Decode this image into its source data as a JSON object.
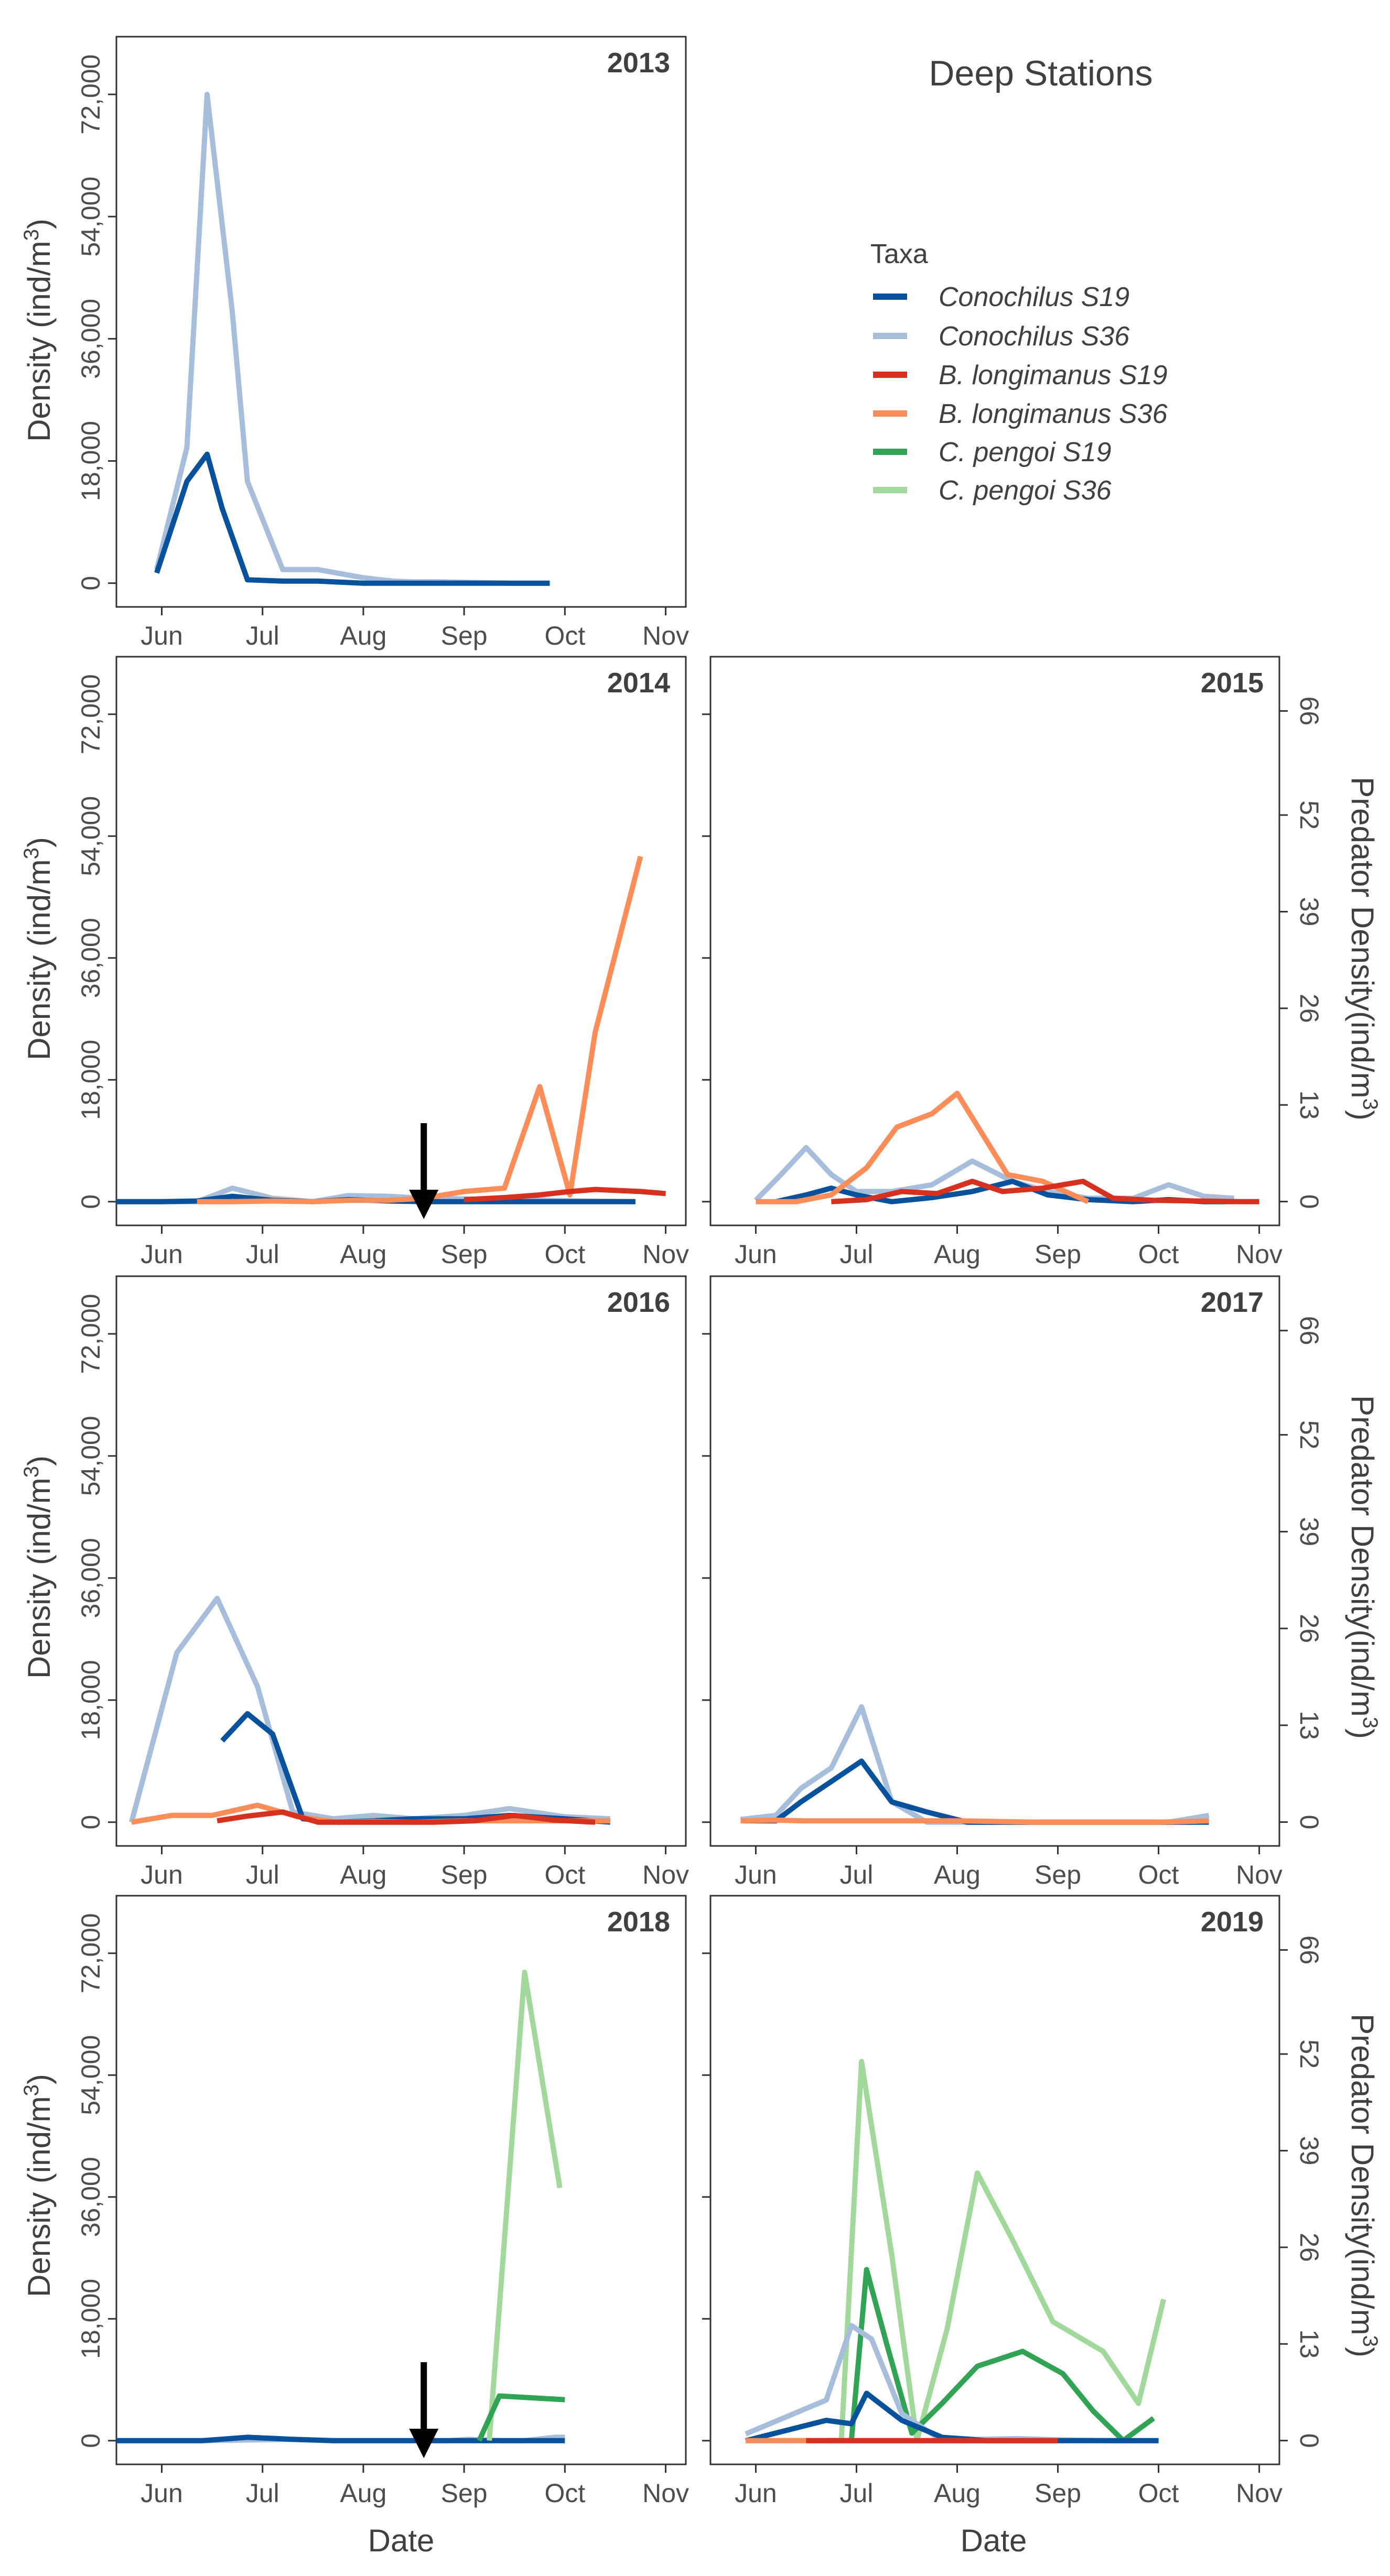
{
  "figure_title": "Deep Stations",
  "x_axis_title": "Date",
  "y_axis_title_left": "Density (ind/m3)",
  "y_axis_title_right": "Predator Density(ind/m3)",
  "legend": {
    "title": "Taxa",
    "entries": [
      {
        "key": "con19",
        "label": "Conochilus S19",
        "color": "#08519c"
      },
      {
        "key": "con36",
        "label": "Conochilus S36",
        "color": "#a6bddb"
      },
      {
        "key": "bl19",
        "label": "B. longimanus S19",
        "color": "#d7301f"
      },
      {
        "key": "bl36",
        "label": "B. longimanus S36",
        "color": "#fc8d59"
      },
      {
        "key": "cp19",
        "label": "C. pengoi S19",
        "color": "#31a354"
      },
      {
        "key": "cp36",
        "label": "C. pengoi S36",
        "color": "#a1d99b"
      }
    ]
  },
  "annotations": {
    "arrow_icon": "down-arrow-icon"
  },
  "chart_data": {
    "type": "line",
    "x_unit": "month (1 = Jun 1)",
    "xlim": [
      0.55,
      6.2
    ],
    "x_ticks": [
      1,
      2,
      3,
      4,
      5,
      6
    ],
    "x_tick_labels": [
      "Jun",
      "Jul",
      "Aug",
      "Sep",
      "Oct",
      "Nov"
    ],
    "ylim_left": [
      -3500,
      80500
    ],
    "y_ticks_left": [
      0,
      18000,
      36000,
      54000,
      72000
    ],
    "y_tick_labels_left": [
      "0",
      "18,000",
      "36,000",
      "54,000",
      "72,000"
    ],
    "ylim_right": [
      -3.2,
      73.3
    ],
    "y_ticks_right": [
      0,
      13,
      26,
      39,
      52,
      66
    ],
    "y_tick_labels_right": [
      "0",
      "13",
      "26",
      "39",
      "52",
      "66"
    ],
    "panels": [
      {
        "year": "2013",
        "right_axis": false,
        "arrow_x": null,
        "series": [
          {
            "key": "con36",
            "x": [
              0.95,
              1.25,
              1.45,
              1.7,
              1.85,
              2.2,
              2.55,
              3.0,
              3.3,
              3.5,
              3.75,
              4.1,
              4.45,
              4.85
            ],
            "y": [
              2000,
              20000,
              72000,
              40000,
              15000,
              2000,
              2000,
              800,
              300,
              200,
              200,
              100,
              0,
              0
            ]
          },
          {
            "key": "con19",
            "x": [
              0.95,
              1.25,
              1.45,
              1.6,
              1.85,
              2.2,
              2.55,
              3.0,
              3.3,
              3.5,
              3.75,
              4.1,
              4.45,
              4.85
            ],
            "y": [
              1500,
              15000,
              19000,
              11000,
              500,
              300,
              300,
              0,
              0,
              0,
              0,
              0,
              0,
              0
            ]
          }
        ]
      },
      {
        "year": "2014",
        "right_axis": false,
        "arrow_x": 3.6,
        "series": [
          {
            "key": "con36",
            "x": [
              0.55,
              1.0,
              1.35,
              1.7,
              2.1,
              2.5,
              2.85,
              3.25,
              3.6,
              4.0,
              4.4,
              4.8,
              5.2,
              5.7
            ],
            "y": [
              0,
              0,
              0,
              2000,
              500,
              0,
              900,
              800,
              500,
              400,
              300,
              200,
              100,
              0
            ]
          },
          {
            "key": "con19",
            "x": [
              0.55,
              1.0,
              1.35,
              1.7,
              2.1,
              2.5,
              2.85,
              3.25,
              3.6,
              4.0,
              4.4,
              4.8,
              5.2,
              5.7
            ],
            "y": [
              0,
              0,
              100,
              800,
              200,
              0,
              300,
              100,
              0,
              0,
              0,
              0,
              0,
              0
            ]
          },
          {
            "key": "bl36",
            "x": [
              1.35,
              1.7,
              2.1,
              2.5,
              2.85,
              3.25,
              3.6,
              4.0,
              4.4,
              4.75,
              5.05,
              5.3,
              5.75
            ],
            "y": [
              0,
              0,
              100,
              0,
              200,
              200,
              500,
              1500,
              2000,
              17000,
              1000,
              25000,
              51000
            ]
          },
          {
            "key": "bl19",
            "x": [
              4.0,
              4.4,
              4.75,
              5.05,
              5.3,
              5.75,
              6.0
            ],
            "y": [
              300,
              600,
              1000,
              1500,
              1800,
              1500,
              1200
            ]
          }
        ]
      },
      {
        "year": "2015",
        "right_axis": true,
        "arrow_x": null,
        "series": [
          {
            "key": "con36",
            "x": [
              1.0,
              1.25,
              1.5,
              1.75,
              2.0,
              2.35,
              2.75,
              3.15,
              3.55,
              3.9,
              4.3,
              4.75,
              5.1,
              5.45,
              5.75
            ],
            "y": [
              200,
              4000,
              8000,
              4000,
              1500,
              1500,
              2500,
              6000,
              3000,
              1500,
              500,
              500,
              2500,
              800,
              500
            ]
          },
          {
            "key": "con19",
            "x": [
              1.2,
              1.5,
              1.75,
              2.0,
              2.35,
              2.75,
              3.15,
              3.55,
              3.9,
              4.3,
              4.75,
              5.1,
              5.45,
              5.75
            ],
            "y": [
              0,
              1000,
              2000,
              1000,
              0,
              600,
              1500,
              3000,
              1000,
              300,
              0,
              300,
              0,
              0
            ]
          },
          {
            "key": "bl36",
            "x": [
              1.0,
              1.4,
              1.75,
              2.1,
              2.4,
              2.75,
              3.0,
              3.25,
              3.5,
              3.85,
              4.3
            ],
            "y": [
              0,
              0,
              1000,
              5000,
              11000,
              13000,
              16000,
              10000,
              4000,
              3000,
              0
            ]
          },
          {
            "key": "bl19",
            "x": [
              1.75,
              2.1,
              2.45,
              2.8,
              3.15,
              3.45,
              3.85,
              4.25,
              4.55,
              4.95,
              5.4,
              5.8,
              6.0
            ],
            "y": [
              0,
              300,
              1500,
              1200,
              3000,
              1500,
              2000,
              3000,
              500,
              200,
              100,
              0,
              0
            ]
          }
        ]
      },
      {
        "year": "2016",
        "right_axis": false,
        "arrow_x": null,
        "series": [
          {
            "key": "con36",
            "x": [
              0.7,
              1.15,
              1.55,
              1.95,
              2.3,
              2.7,
              3.1,
              3.5,
              4.0,
              4.45,
              5.0,
              5.45
            ],
            "y": [
              0,
              25000,
              33000,
              20000,
              1500,
              500,
              1000,
              500,
              1000,
              2000,
              800,
              500
            ]
          },
          {
            "key": "con19",
            "x": [
              1.6,
              1.85,
              2.1,
              2.4,
              2.75,
              3.1,
              3.5,
              4.0,
              4.45,
              5.0,
              5.45
            ],
            "y": [
              12000,
              16000,
              13000,
              500,
              0,
              200,
              500,
              500,
              1000,
              500,
              0
            ]
          },
          {
            "key": "bl36",
            "x": [
              0.7,
              1.1,
              1.5,
              1.95,
              2.35,
              2.75,
              3.1,
              3.5,
              4.0,
              4.45,
              5.0,
              5.45
            ],
            "y": [
              0,
              1000,
              1000,
              2500,
              800,
              0,
              100,
              0,
              200,
              200,
              200,
              200
            ]
          },
          {
            "key": "bl19",
            "x": [
              1.55,
              1.85,
              2.2,
              2.55,
              2.9,
              3.3,
              3.7,
              4.1,
              4.5,
              4.9,
              5.3
            ],
            "y": [
              200,
              900,
              1500,
              0,
              0,
              0,
              0,
              200,
              1000,
              300,
              0
            ]
          }
        ]
      },
      {
        "year": "2017",
        "right_axis": true,
        "arrow_x": null,
        "series": [
          {
            "key": "con36",
            "x": [
              0.85,
              1.2,
              1.45,
              1.75,
              2.05,
              2.35,
              2.7,
              3.1,
              3.5,
              3.9,
              4.3,
              4.7,
              5.1,
              5.5
            ],
            "y": [
              400,
              1000,
              5000,
              8000,
              17000,
              3000,
              0,
              0,
              0,
              0,
              0,
              0,
              0,
              1000
            ]
          },
          {
            "key": "con19",
            "x": [
              0.85,
              1.2,
              1.45,
              1.75,
              2.05,
              2.35,
              2.7,
              3.1,
              3.5,
              3.9,
              4.3,
              4.7,
              5.1,
              5.5
            ],
            "y": [
              200,
              200,
              3000,
              6000,
              9000,
              3000,
              1500,
              0,
              0,
              0,
              0,
              0,
              0,
              0
            ]
          },
          {
            "key": "bl36",
            "x": [
              0.85,
              1.2,
              1.45,
              1.75,
              2.05,
              2.3,
              2.65,
              3.0,
              3.4,
              3.8,
              4.2,
              4.6,
              5.0,
              5.5
            ],
            "y": [
              200,
              300,
              200,
              200,
              200,
              200,
              200,
              200,
              100,
              0,
              0,
              0,
              0,
              200
            ]
          }
        ]
      },
      {
        "year": "2018",
        "right_axis": false,
        "arrow_x": 3.6,
        "series": [
          {
            "key": "con36",
            "x": [
              0.55,
              1.0,
              1.4,
              1.85,
              2.3,
              2.7,
              3.1,
              3.5,
              3.85,
              4.05,
              4.35,
              4.6,
              4.9,
              5.0
            ],
            "y": [
              0,
              0,
              0,
              100,
              200,
              0,
              0,
              0,
              0,
              200,
              0,
              0,
              500,
              500
            ]
          },
          {
            "key": "con19",
            "x": [
              0.55,
              1.0,
              1.4,
              1.85,
              2.3,
              2.7,
              3.1,
              3.5,
              3.85,
              4.05,
              4.35,
              4.6,
              5.0
            ],
            "y": [
              0,
              0,
              0,
              500,
              200,
              0,
              0,
              0,
              0,
              0,
              0,
              0,
              0
            ]
          },
          {
            "key": "cp36",
            "x": [
              4.25,
              4.6,
              4.95
            ],
            "y": [
              0,
              63,
              34
            ]
          },
          {
            "key": "cp19",
            "x": [
              4.15,
              4.35,
              5.0
            ],
            "y": [
              0,
              6,
              5.5
            ]
          }
        ]
      },
      {
        "year": "2019",
        "right_axis": true,
        "arrow_x": null,
        "series": [
          {
            "key": "cp36",
            "x": [
              0.9,
              1.85,
              2.05,
              2.35,
              2.6,
              2.9,
              3.2,
              3.55,
              3.95,
              4.45,
              4.8,
              5.05
            ],
            "y": [
              0,
              0,
              51,
              25,
              0,
              15,
              36,
              27,
              16,
              12,
              5,
              19
            ]
          },
          {
            "key": "cp19",
            "x": [
              1.7,
              1.95,
              2.1,
              2.3,
              2.55,
              2.85,
              3.2,
              3.65,
              4.05,
              4.35,
              4.65,
              4.95
            ],
            "y": [
              0,
              0,
              23,
              13,
              1,
              5,
              10,
              12,
              9,
              4,
              0,
              3
            ]
          },
          {
            "key": "con36",
            "x": [
              0.9,
              1.7,
              1.95,
              2.15,
              2.45,
              2.8,
              3.2,
              3.6,
              4.05,
              4.5,
              5.0
            ],
            "y": [
              1000,
              6000,
              17000,
              15000,
              4000,
              500,
              200,
              300,
              100,
              0,
              0
            ]
          },
          {
            "key": "con19",
            "x": [
              0.9,
              1.7,
              1.95,
              2.1,
              2.45,
              2.85,
              3.3,
              3.7,
              4.1,
              4.5,
              5.0
            ],
            "y": [
              0,
              3000,
              2500,
              7000,
              3000,
              500,
              0,
              0,
              0,
              0,
              0
            ]
          },
          {
            "key": "bl36",
            "x": [
              0.9,
              1.5,
              2.0,
              2.5,
              3.0,
              3.5,
              4.0
            ],
            "y": [
              0,
              0,
              0,
              0,
              0,
              0,
              0
            ]
          },
          {
            "key": "bl19",
            "x": [
              1.5,
              2.0,
              2.5,
              3.0,
              3.5,
              4.0
            ],
            "y": [
              0,
              0,
              0,
              0,
              0,
              0
            ]
          }
        ]
      }
    ]
  }
}
